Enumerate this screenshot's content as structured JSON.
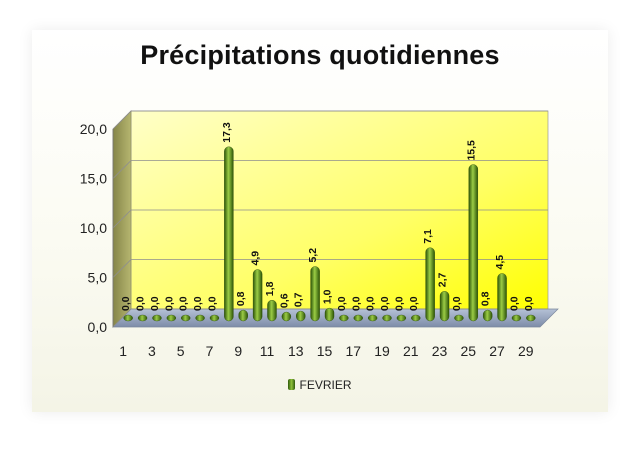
{
  "chart_data": {
    "type": "bar",
    "title": "Précipitations quotidiennes",
    "xlabel": "",
    "ylabel": "",
    "categories": [
      1,
      2,
      3,
      4,
      5,
      6,
      7,
      8,
      9,
      10,
      11,
      12,
      13,
      14,
      15,
      16,
      17,
      18,
      19,
      20,
      21,
      22,
      23,
      24,
      25,
      26,
      27,
      28,
      29
    ],
    "x_tick_labels": [
      "1",
      "3",
      "5",
      "7",
      "9",
      "11",
      "13",
      "15",
      "17",
      "19",
      "21",
      "23",
      "25",
      "27",
      "29"
    ],
    "y_tick_labels": [
      "0,0",
      "5,0",
      "10,0",
      "15,0",
      "20,0"
    ],
    "ylim": [
      0,
      20
    ],
    "grid": true,
    "legend_position": "bottom",
    "series": [
      {
        "name": "FEVRIER",
        "color": "#6a9a1f",
        "values": [
          0,
          0,
          0,
          0,
          0,
          0,
          0,
          17.3,
          0.8,
          4.9,
          1.8,
          0.6,
          0.7,
          5.2,
          1.0,
          0,
          0,
          0,
          0,
          0,
          0,
          7.1,
          2.7,
          0,
          15.5,
          0.8,
          4.5,
          0,
          0
        ],
        "data_labels": [
          "0,0",
          "0,0",
          "0,0",
          "0,0",
          "0,0",
          "0,0",
          "0,0",
          "17,3",
          "0,8",
          "4,9",
          "1,8",
          "0,6",
          "0,7",
          "5,2",
          "1,0",
          "0,0",
          "0,0",
          "0,0",
          "0,0",
          "0,0",
          "0,0",
          "7,1",
          "2,7",
          "0,0",
          "15,5",
          "0,8",
          "4,5",
          "0,0",
          "0,0"
        ]
      }
    ],
    "colors": {
      "wall_top": "#ffffb0",
      "wall_bottom": "#ffff00",
      "side_wall": "#9a9a52",
      "floor": "#98a7c2"
    }
  }
}
